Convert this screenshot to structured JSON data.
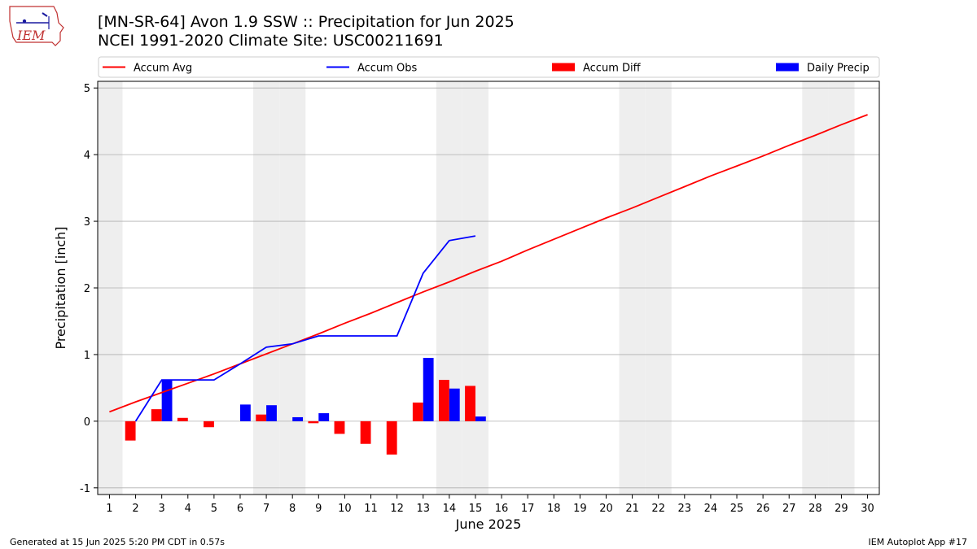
{
  "header": {
    "title_line1": "[MN-SR-64] Avon 1.9 SSW :: Precipitation for Jun 2025",
    "title_line2": "NCEI 1991-2020 Climate Site: USC00211691",
    "logo_text": "IEM"
  },
  "footer": {
    "left": "Generated at 15 Jun 2025 5:20 PM CDT in 0.57s",
    "right": "IEM Autoplot App #17"
  },
  "colors": {
    "avg": "#ff0000",
    "obs": "#0000ff",
    "diff": "#ff0000",
    "daily": "#0000ff",
    "weekend_shade": "#eeeeee",
    "grid": "#b0b0b0"
  },
  "chart_data": {
    "type": "bar",
    "xlabel": "June 2025",
    "ylabel": "Precipitation [inch]",
    "ylim": [
      -1,
      5
    ],
    "yticks": [
      -1,
      0,
      1,
      2,
      3,
      4,
      5
    ],
    "xticks": [
      1,
      2,
      3,
      4,
      5,
      6,
      7,
      8,
      9,
      10,
      11,
      12,
      13,
      14,
      15,
      16,
      17,
      18,
      19,
      20,
      21,
      22,
      23,
      24,
      25,
      26,
      27,
      28,
      29,
      30
    ],
    "grid": "horizontal",
    "legend_position": "top",
    "weekend_days": [
      1,
      7,
      8,
      14,
      15,
      21,
      22,
      28,
      29
    ],
    "series": [
      {
        "name": "Accum Avg",
        "kind": "line",
        "x": [
          1,
          2,
          3,
          4,
          5,
          6,
          7,
          8,
          9,
          10,
          11,
          12,
          13,
          14,
          15,
          16,
          17,
          18,
          19,
          20,
          21,
          22,
          23,
          24,
          25,
          26,
          27,
          28,
          29,
          30
        ],
        "values": [
          0.14,
          0.29,
          0.43,
          0.57,
          0.71,
          0.86,
          1.01,
          1.16,
          1.31,
          1.47,
          1.62,
          1.78,
          1.94,
          2.09,
          2.25,
          2.4,
          2.57,
          2.73,
          2.89,
          3.05,
          3.2,
          3.36,
          3.52,
          3.68,
          3.83,
          3.98,
          4.14,
          4.29,
          4.45,
          4.6
        ]
      },
      {
        "name": "Accum Obs",
        "kind": "line",
        "x": [
          2,
          3,
          4,
          5,
          6,
          7,
          8,
          9,
          10,
          11,
          12,
          13,
          14,
          15
        ],
        "values": [
          0.0,
          0.62,
          0.62,
          0.62,
          0.86,
          1.11,
          1.16,
          1.28,
          1.28,
          1.28,
          1.28,
          2.22,
          2.71,
          2.78
        ]
      },
      {
        "name": "Accum Diff",
        "kind": "bar",
        "x": [
          2,
          3,
          4,
          5,
          7,
          9,
          10,
          11,
          12,
          13,
          14,
          15
        ],
        "values": [
          -0.29,
          0.18,
          0.05,
          -0.09,
          0.1,
          -0.03,
          -0.19,
          -0.34,
          -0.5,
          0.28,
          0.62,
          0.53
        ]
      },
      {
        "name": "Daily Precip",
        "kind": "bar",
        "x": [
          3,
          6,
          7,
          8,
          9,
          13,
          14,
          15
        ],
        "values": [
          0.62,
          0.25,
          0.24,
          0.06,
          0.12,
          0.95,
          0.49,
          0.07
        ]
      }
    ]
  }
}
